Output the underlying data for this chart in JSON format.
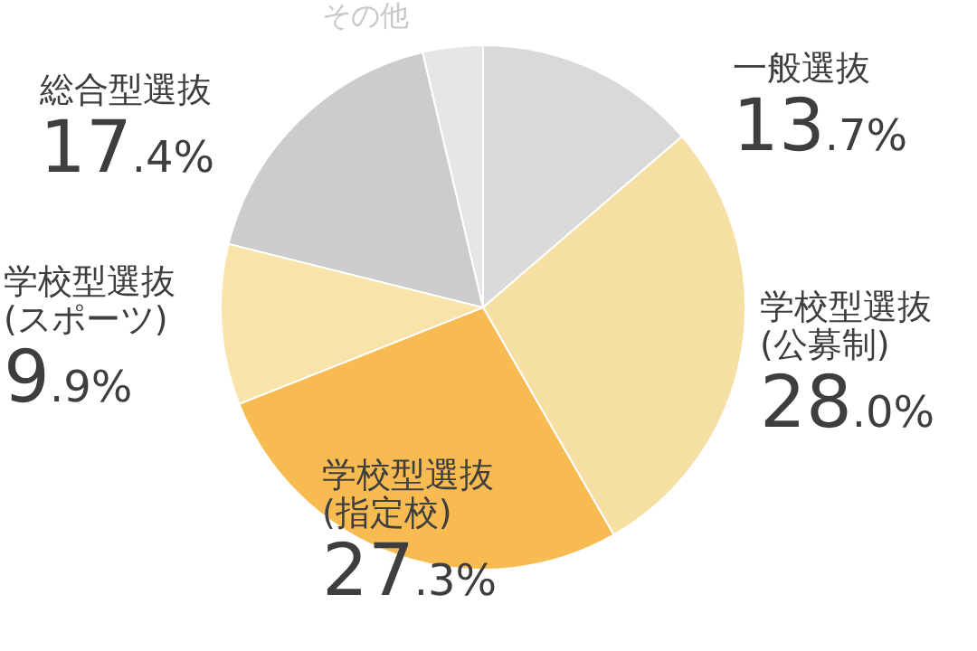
{
  "chart_data": {
    "type": "pie",
    "categories": [
      "一般選抜",
      "学校型選抜(公募制)",
      "学校型選抜(指定校)",
      "学校型選抜(スポーツ)",
      "総合型選抜",
      "その他"
    ],
    "values": [
      13.7,
      28.0,
      27.3,
      9.9,
      17.4,
      3.7
    ],
    "value_labels": [
      "13.7%",
      "28.0%",
      "27.3%",
      "9.9%",
      "17.4%",
      null
    ],
    "colors": [
      "#d9d9d9",
      "#f6dfa3",
      "#f8bb52",
      "#f9e3a9",
      "#cccccc",
      "#e6e6e6"
    ]
  }
}
